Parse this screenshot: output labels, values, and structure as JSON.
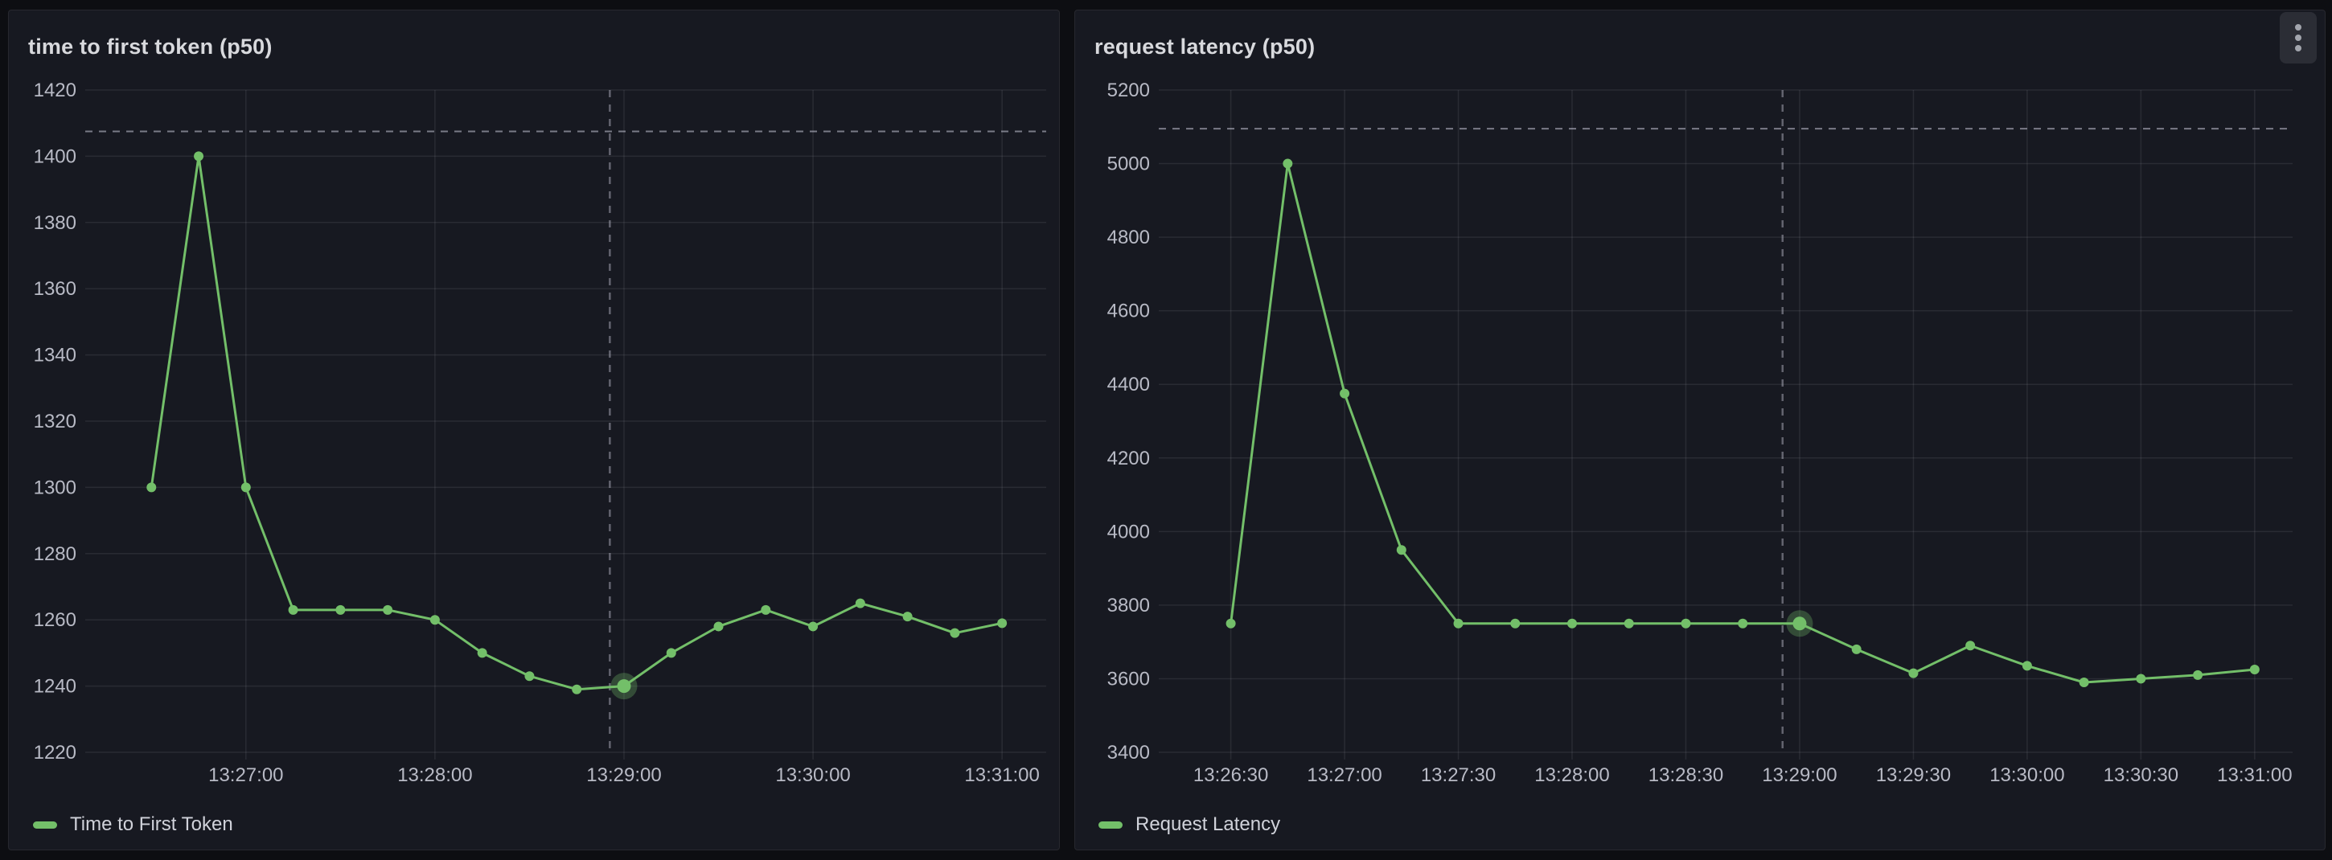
{
  "colors": {
    "page_bg": "#0d0e12",
    "panel_bg": "#171921",
    "panel_border": "#27282f",
    "accent_green": "#73bf69",
    "highlight_halo": "rgba(115,191,105,0.30)",
    "grid": "rgba(204,204,220,0.10)",
    "tick_text": "#b8bac5",
    "title_text": "#d8d9dd",
    "dashed_threshold": "rgba(204,204,220,0.55)",
    "crosshair": "rgba(204,204,220,0.42)"
  },
  "panels": [
    {
      "title": "time to first token (p50)",
      "legend": "Time to First Token"
    },
    {
      "title": "request latency (p50)",
      "legend": "Request Latency",
      "menu_icon": "kebab-menu"
    }
  ],
  "chart_data": [
    {
      "type": "line",
      "title": "time to first token (p50)",
      "series": [
        {
          "name": "Time to First Token",
          "color": "#73bf69",
          "x": [
            "13:26:30",
            "13:26:45",
            "13:27:00",
            "13:27:15",
            "13:27:30",
            "13:27:45",
            "13:28:00",
            "13:28:15",
            "13:28:30",
            "13:28:45",
            "13:29:00",
            "13:29:15",
            "13:29:30",
            "13:29:45",
            "13:30:00",
            "13:30:15",
            "13:30:30",
            "13:30:45",
            "13:31:00"
          ],
          "values": [
            1300,
            1400,
            1300,
            1263,
            1263,
            1263,
            1260,
            1250,
            1243,
            1239,
            1240,
            1250,
            1258,
            1263,
            1258,
            1265,
            1261,
            1256,
            1259
          ]
        }
      ],
      "x_ticks": [
        "13:27:00",
        "13:28:00",
        "13:29:00",
        "13:30:00",
        "13:31:00"
      ],
      "y_ticks": [
        1220,
        1240,
        1260,
        1280,
        1300,
        1320,
        1340,
        1360,
        1380,
        1400,
        1420
      ],
      "ylim": [
        1220,
        1420
      ],
      "xlim": [
        "13:26:09",
        "13:31:14"
      ],
      "threshold_dashed": 1407.5,
      "crosshair_time": "13:28:55.5",
      "highlight_index": 10,
      "grid": true,
      "legend_position": "bottom-left",
      "xlabel": "",
      "ylabel": ""
    },
    {
      "type": "line",
      "title": "request latency (p50)",
      "series": [
        {
          "name": "Request Latency",
          "color": "#73bf69",
          "x": [
            "13:26:30",
            "13:26:45",
            "13:27:00",
            "13:27:15",
            "13:27:30",
            "13:27:45",
            "13:28:00",
            "13:28:15",
            "13:28:30",
            "13:28:45",
            "13:29:00",
            "13:29:15",
            "13:29:30",
            "13:29:45",
            "13:30:00",
            "13:30:15",
            "13:30:30",
            "13:30:45",
            "13:31:00"
          ],
          "values": [
            3750,
            5000,
            4375,
            3950,
            3750,
            3750,
            3750,
            3750,
            3750,
            3750,
            3750,
            3680,
            3615,
            3690,
            3635,
            3590,
            3600,
            3610,
            3625
          ]
        }
      ],
      "x_ticks": [
        "13:26:30",
        "13:27:00",
        "13:27:30",
        "13:28:00",
        "13:28:30",
        "13:29:00",
        "13:29:30",
        "13:30:00",
        "13:30:30",
        "13:31:00"
      ],
      "y_ticks": [
        3400,
        3600,
        3800,
        4000,
        4200,
        4400,
        4600,
        4800,
        5000,
        5200
      ],
      "ylim": [
        3400,
        5200
      ],
      "xlim": [
        "13:26:11",
        "13:31:10"
      ],
      "threshold_dashed": 5095,
      "crosshair_time": "13:28:55.5",
      "highlight_index": 10,
      "grid": true,
      "legend_position": "bottom-left",
      "xlabel": "",
      "ylabel": ""
    }
  ]
}
